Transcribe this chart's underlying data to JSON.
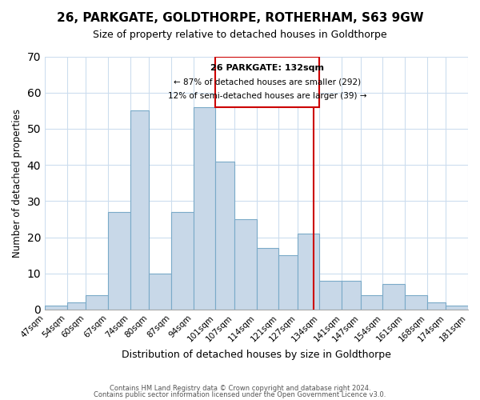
{
  "title": "26, PARKGATE, GOLDTHORPE, ROTHERHAM, S63 9GW",
  "subtitle": "Size of property relative to detached houses in Goldthorpe",
  "xlabel": "Distribution of detached houses by size in Goldthorpe",
  "ylabel": "Number of detached properties",
  "bin_labels": [
    "47sqm",
    "54sqm",
    "60sqm",
    "67sqm",
    "74sqm",
    "80sqm",
    "87sqm",
    "94sqm",
    "101sqm",
    "107sqm",
    "114sqm",
    "121sqm",
    "127sqm",
    "134sqm",
    "141sqm",
    "147sqm",
    "154sqm",
    "161sqm",
    "168sqm",
    "174sqm",
    "181sqm"
  ],
  "bar_values": [
    1,
    2,
    4,
    27,
    55,
    10,
    27,
    56,
    41,
    25,
    17,
    15,
    21,
    8,
    8,
    4,
    7,
    4,
    2,
    1
  ],
  "bar_color": "#c8d8e8",
  "bar_edge_color": "#7aaac8",
  "reference_line_x": 132,
  "annotation_title": "26 PARKGATE: 132sqm",
  "annotation_line1": "← 87% of detached houses are smaller (292)",
  "annotation_line2": "12% of semi-detached houses are larger (39) →",
  "annotation_box_color": "#ffffff",
  "annotation_box_edge": "#cc0000",
  "reference_line_color": "#cc0000",
  "ylim": [
    0,
    70
  ],
  "yticks": [
    0,
    10,
    20,
    30,
    40,
    50,
    60,
    70
  ],
  "footer1": "Contains HM Land Registry data © Crown copyright and database right 2024.",
  "footer2": "Contains public sector information licensed under the Open Government Licence v3.0.",
  "bin_edges": [
    47,
    54,
    60,
    67,
    74,
    80,
    87,
    94,
    101,
    107,
    114,
    121,
    127,
    134,
    141,
    147,
    154,
    161,
    168,
    174,
    181
  ]
}
